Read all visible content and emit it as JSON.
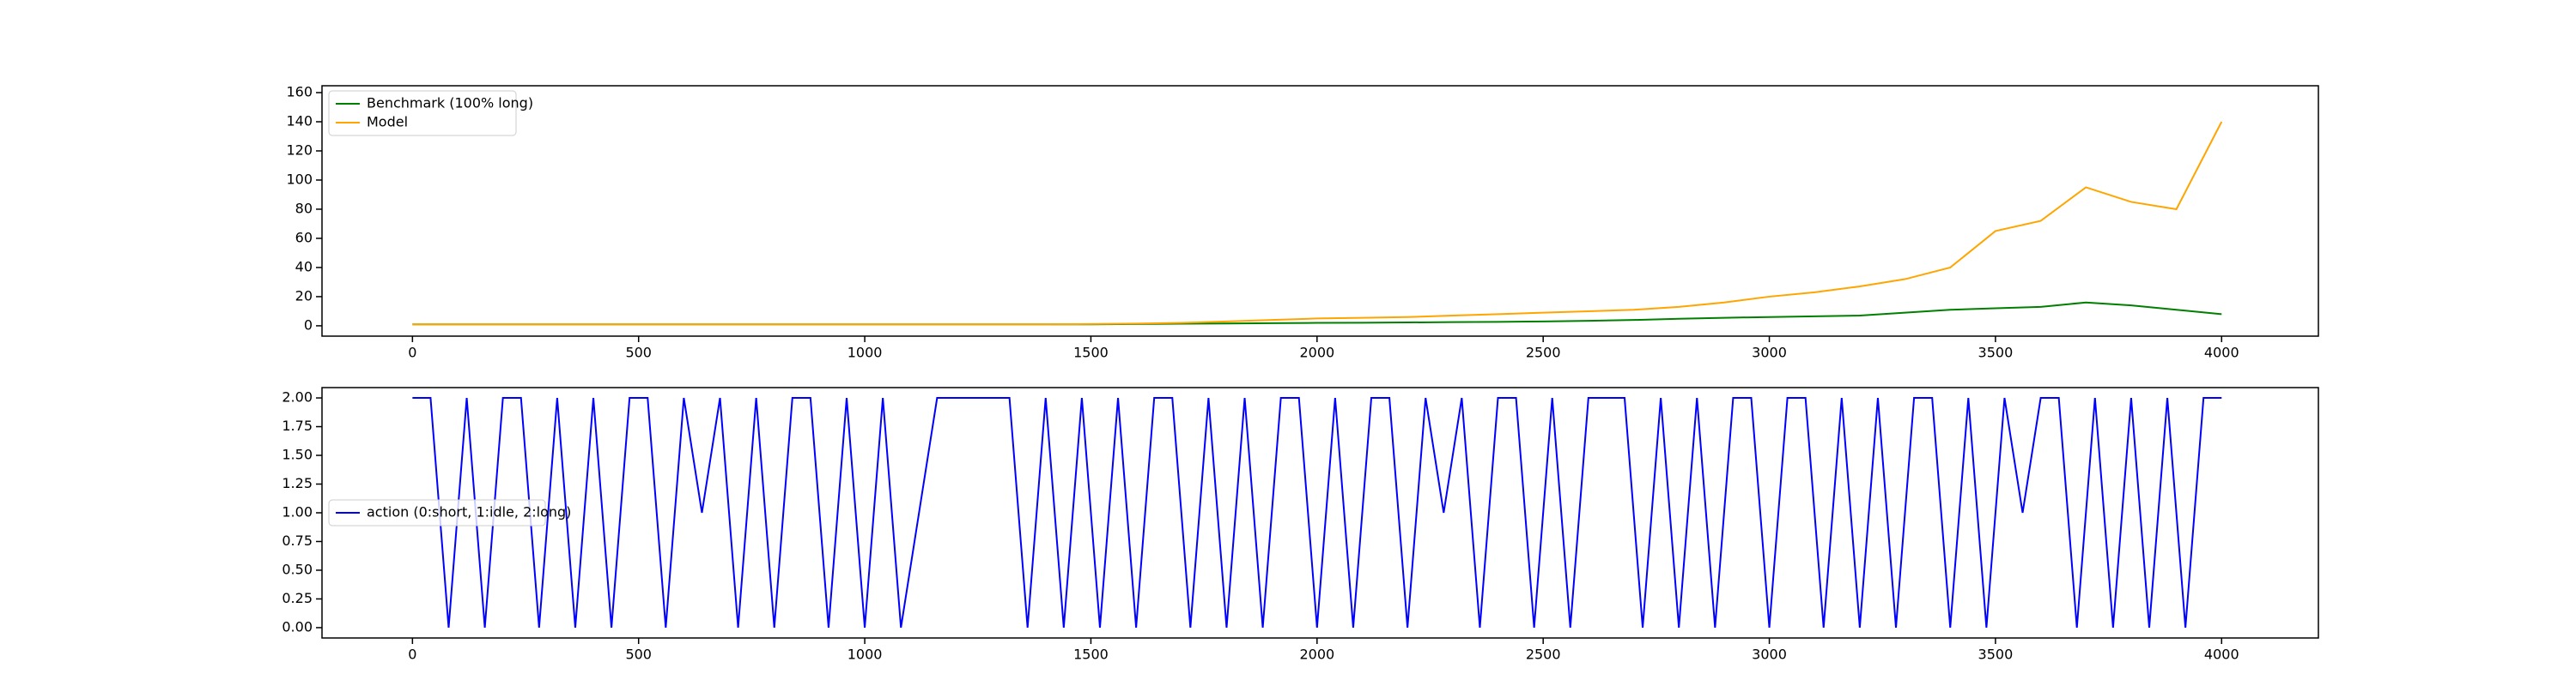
{
  "chart_data": [
    {
      "type": "line",
      "x": [
        0,
        100,
        200,
        300,
        400,
        500,
        600,
        700,
        800,
        900,
        1000,
        1100,
        1200,
        1300,
        1400,
        1500,
        1600,
        1700,
        1800,
        1900,
        2000,
        2100,
        2200,
        2300,
        2400,
        2500,
        2600,
        2700,
        2800,
        2900,
        3000,
        3100,
        3200,
        3300,
        3400,
        3500,
        3600,
        3700,
        3800,
        3900,
        4000
      ],
      "series": [
        {
          "name": "Benchmark (100% long)",
          "color": "#008000",
          "values": [
            1,
            1,
            1,
            1,
            1,
            1,
            1,
            1,
            1,
            1,
            1,
            1,
            1,
            1,
            1,
            1,
            1.2,
            1.4,
            1.6,
            1.8,
            2,
            2.1,
            2.3,
            2.5,
            2.7,
            3,
            3.4,
            4,
            4.8,
            5.5,
            6,
            6.5,
            7,
            9,
            11,
            12,
            13,
            16,
            14,
            11,
            8
          ]
        },
        {
          "name": "Model",
          "color": "#ffa500",
          "values": [
            1,
            1,
            1,
            1,
            1,
            1,
            1,
            1,
            1,
            1,
            1,
            1,
            1,
            1,
            1,
            1.2,
            1.5,
            2,
            3,
            4,
            5,
            5.5,
            6,
            7,
            8,
            9,
            10,
            11,
            13,
            16,
            20,
            23,
            27,
            32,
            40,
            65,
            72,
            95,
            85,
            80,
            140
          ]
        }
      ],
      "xlim": [
        -200,
        4214
      ],
      "xticks": [
        0,
        500,
        1000,
        1500,
        2000,
        2500,
        3000,
        3500,
        4000
      ],
      "ylim": [
        -7.1,
        164.7
      ],
      "yticks": [
        0,
        20,
        40,
        60,
        80,
        100,
        120,
        140,
        160
      ],
      "legend": "upper left"
    },
    {
      "type": "line",
      "x": [
        0,
        40,
        80,
        120,
        160,
        200,
        240,
        280,
        320,
        360,
        400,
        440,
        480,
        520,
        560,
        600,
        640,
        680,
        720,
        760,
        800,
        840,
        880,
        920,
        960,
        1000,
        1040,
        1080,
        1120,
        1160,
        1200,
        1240,
        1280,
        1320,
        1360,
        1400,
        1440,
        1480,
        1520,
        1560,
        1600,
        1640,
        1680,
        1720,
        1760,
        1800,
        1840,
        1880,
        1920,
        1960,
        2000,
        2040,
        2080,
        2120,
        2160,
        2200,
        2240,
        2280,
        2320,
        2360,
        2400,
        2440,
        2480,
        2520,
        2560,
        2600,
        2640,
        2680,
        2720,
        2760,
        2800,
        2840,
        2880,
        2920,
        2960,
        3000,
        3040,
        3080,
        3120,
        3160,
        3200,
        3240,
        3280,
        3320,
        3360,
        3400,
        3440,
        3480,
        3520,
        3560,
        3600,
        3640,
        3680,
        3720,
        3760,
        3800,
        3840,
        3880,
        3920,
        3960,
        4000
      ],
      "series": [
        {
          "name": "action (0:short, 1:idle, 2:long)",
          "color": "#0000ff",
          "values": [
            2,
            2,
            0,
            2,
            0,
            2,
            2,
            0,
            2,
            0,
            2,
            0,
            2,
            2,
            0,
            2,
            1,
            2,
            0,
            2,
            0,
            2,
            2,
            0,
            2,
            0,
            2,
            0,
            1,
            2,
            2,
            2,
            2,
            2,
            0,
            2,
            0,
            2,
            0,
            2,
            0,
            2,
            2,
            0,
            2,
            0,
            2,
            0,
            2,
            2,
            0,
            2,
            0,
            2,
            2,
            0,
            2,
            1,
            2,
            0,
            2,
            2,
            0,
            2,
            0,
            2,
            2,
            2,
            0,
            2,
            0,
            2,
            0,
            2,
            2,
            0,
            2,
            2,
            0,
            2,
            0,
            2,
            0,
            2,
            2,
            0,
            2,
            0,
            2,
            1,
            2,
            2,
            0,
            2,
            0,
            2,
            0,
            2,
            0,
            2,
            2
          ]
        }
      ],
      "xlim": [
        -200,
        4214
      ],
      "xticks": [
        0,
        500,
        1000,
        1500,
        2000,
        2500,
        3000,
        3500,
        4000
      ],
      "ylim": [
        -0.09,
        2.09
      ],
      "yticks": [
        {
          "value": 0,
          "label": "0.00"
        },
        {
          "value": 0.25,
          "label": "0.25"
        },
        {
          "value": 0.5,
          "label": "0.50"
        },
        {
          "value": 0.75,
          "label": "0.75"
        },
        {
          "value": 1,
          "label": "1.00"
        },
        {
          "value": 1.25,
          "label": "1.25"
        },
        {
          "value": 1.5,
          "label": "1.50"
        },
        {
          "value": 1.75,
          "label": "1.75"
        },
        {
          "value": 2,
          "label": "2.00"
        }
      ],
      "legend": "center left"
    }
  ]
}
